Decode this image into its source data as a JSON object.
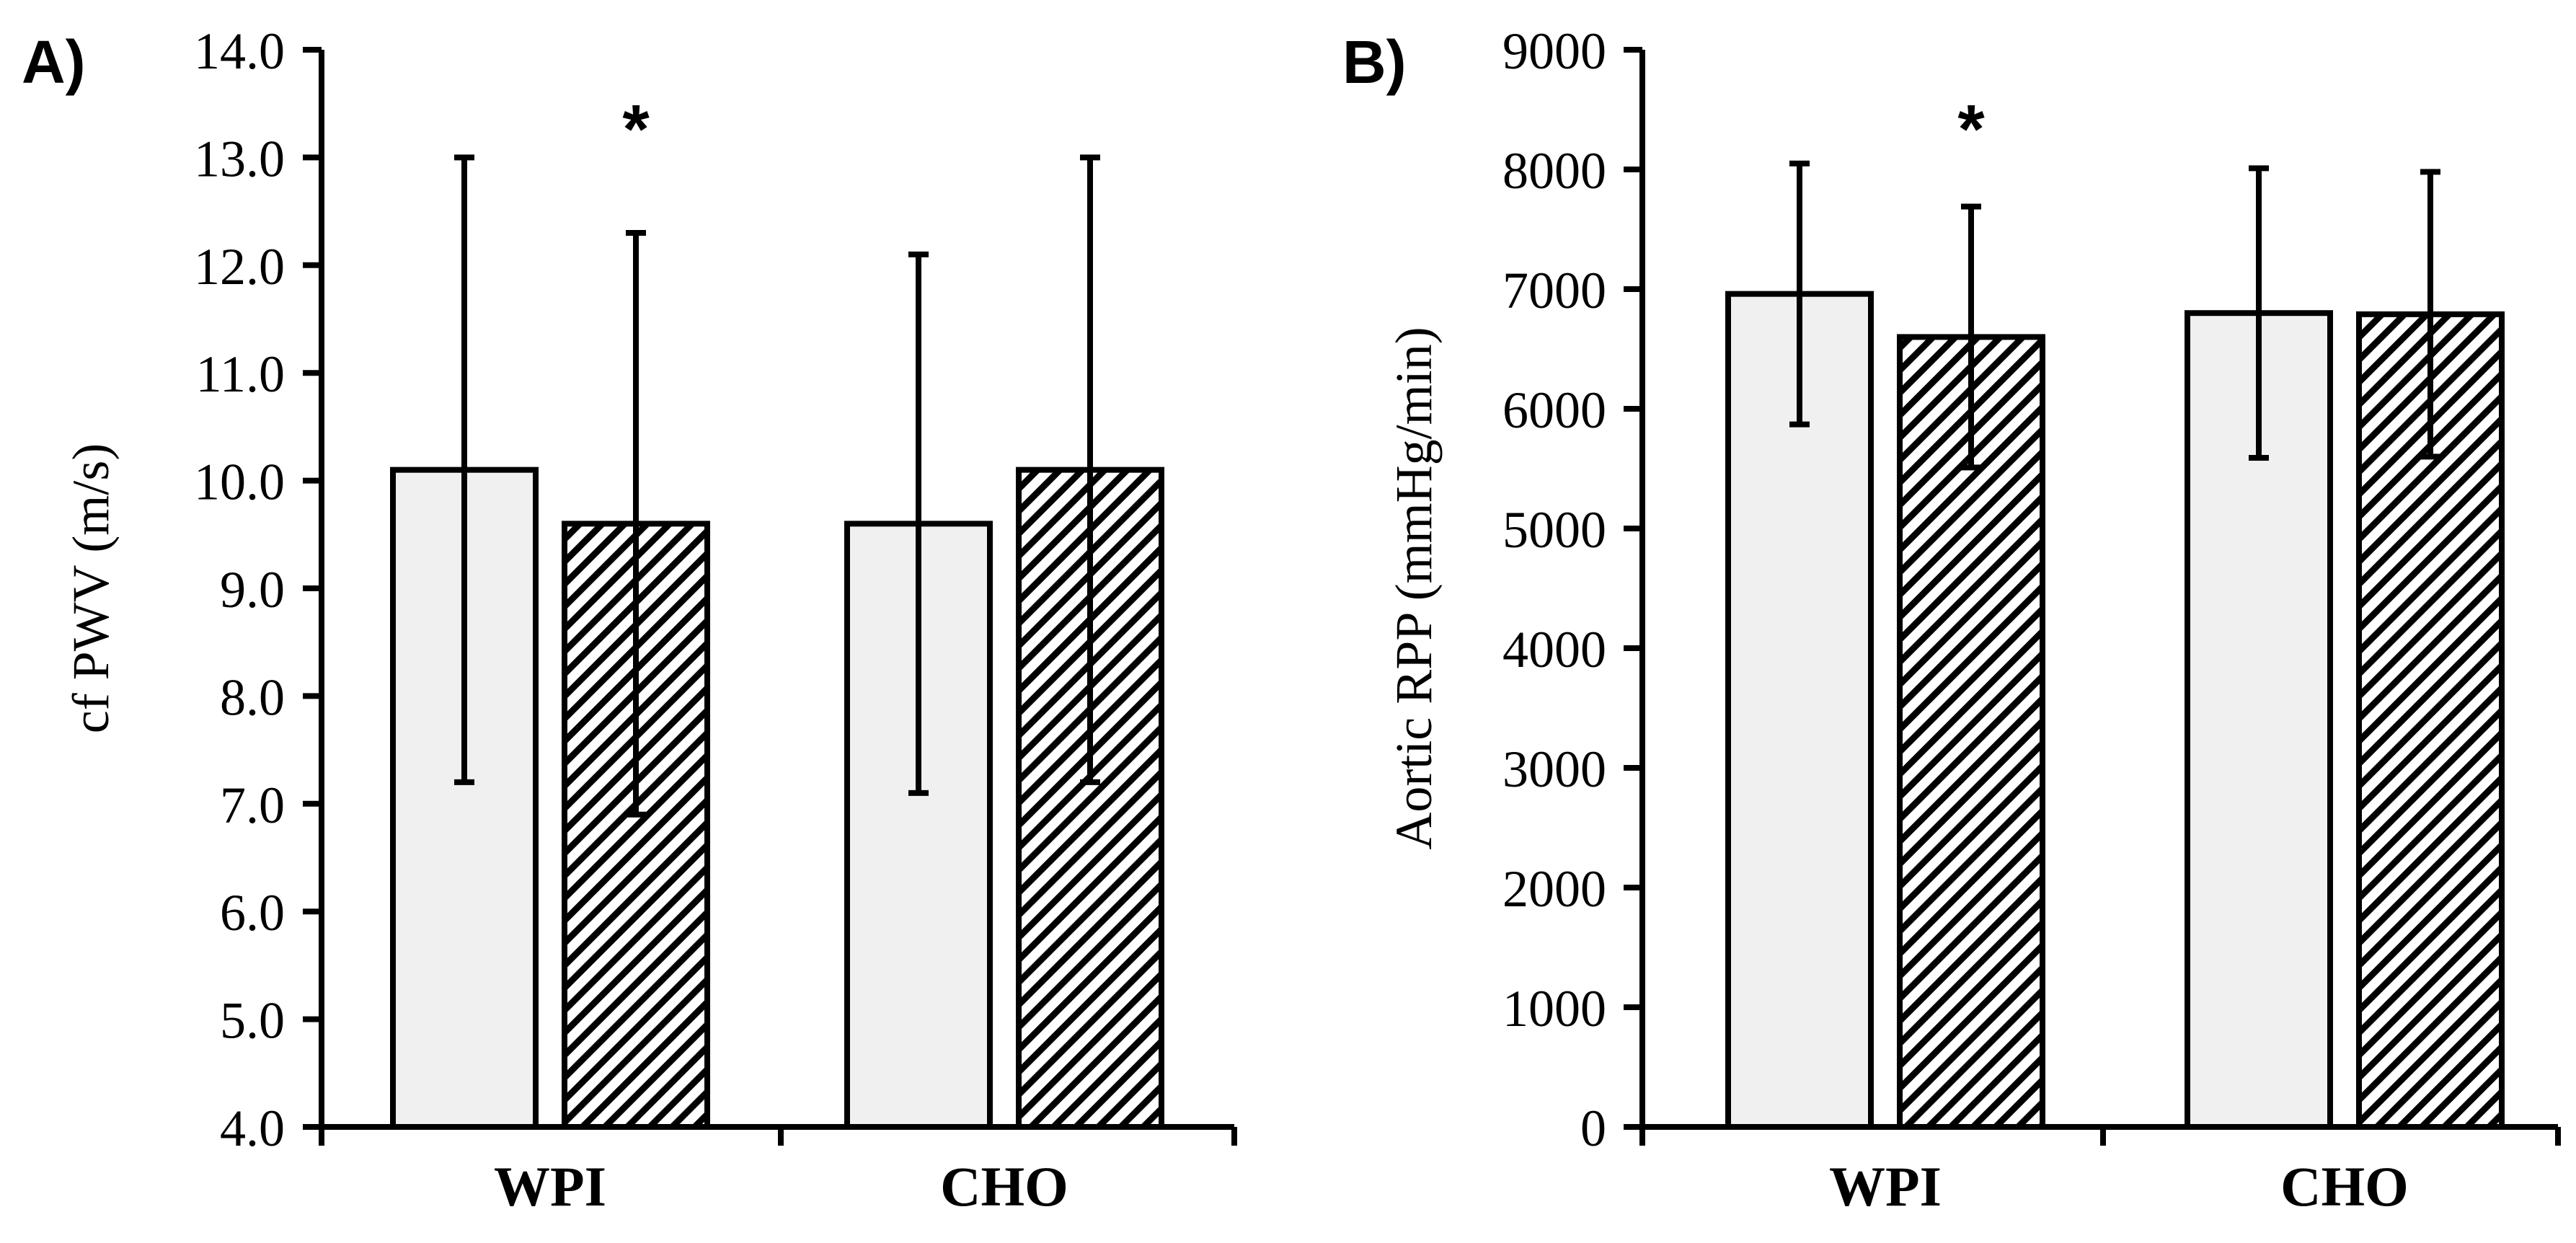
{
  "colors": {
    "bar_fill": "#f0f0f0",
    "stroke": "#000000",
    "hatch": "#000000",
    "background": "#ffffff"
  },
  "chart_data": [
    {
      "type": "bar",
      "panel_label": "A)",
      "title": "",
      "xlabel": "",
      "ylabel": "cf PWV (m/s)",
      "ylim": [
        4.0,
        14.0
      ],
      "yticks": [
        4.0,
        5.0,
        6.0,
        7.0,
        8.0,
        9.0,
        10.0,
        11.0,
        12.0,
        13.0,
        14.0
      ],
      "ytick_labels": [
        "4.0",
        "5.0",
        "6.0",
        "7.0",
        "8.0",
        "9.0",
        "10.0",
        "11.0",
        "12.0",
        "13.0",
        "14.0"
      ],
      "categories": [
        "WPI",
        "CHO"
      ],
      "series": [
        {
          "name": "series-1 (solid)",
          "pattern": "solid",
          "values": [
            10.1,
            9.6
          ],
          "error": [
            2.9,
            2.5
          ]
        },
        {
          "name": "series-2 (hatched)",
          "pattern": "hatch",
          "values": [
            9.6,
            10.1
          ],
          "error": [
            2.7,
            2.9
          ]
        }
      ],
      "annotations": [
        {
          "text": "*",
          "category": "WPI",
          "series": 1
        }
      ]
    },
    {
      "type": "bar",
      "panel_label": "B)",
      "title": "",
      "xlabel": "",
      "ylabel": "Aortic RPP (mmHg/min)",
      "ylim": [
        0,
        9000
      ],
      "yticks": [
        0,
        1000,
        2000,
        3000,
        4000,
        5000,
        6000,
        7000,
        8000,
        9000
      ],
      "ytick_labels": [
        "0",
        "1000",
        "2000",
        "3000",
        "4000",
        "5000",
        "6000",
        "7000",
        "8000",
        "9000"
      ],
      "categories": [
        "WPI",
        "CHO"
      ],
      "series": [
        {
          "name": "series-1 (solid)",
          "pattern": "solid",
          "values": [
            6960,
            6800
          ],
          "error": [
            1090,
            1210
          ]
        },
        {
          "name": "series-2 (hatched)",
          "pattern": "hatch",
          "values": [
            6600,
            6790
          ],
          "error": [
            1090,
            1190
          ]
        }
      ],
      "annotations": [
        {
          "text": "*",
          "category": "WPI",
          "series": 1
        }
      ]
    }
  ]
}
